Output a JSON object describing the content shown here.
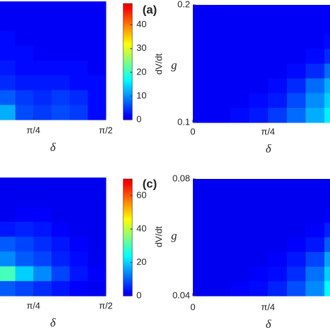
{
  "chart_data": [
    {
      "type": "heatmap",
      "panel_label": "(a)",
      "xlabel": "δ",
      "colorbar_label": "dV/dt",
      "xlim": [
        0,
        1.5708
      ],
      "xticks": [
        {
          "value": 0.7854,
          "label": "π/4"
        },
        {
          "value": 1.5708,
          "label": "π/2"
        }
      ],
      "zlim": [
        0,
        49
      ],
      "zticks": [
        0,
        10,
        20,
        30,
        40
      ],
      "z": [
        [
          1,
          1,
          1,
          1,
          1,
          1,
          1,
          1
        ],
        [
          1,
          1,
          1,
          1,
          1,
          1,
          1,
          1
        ],
        [
          1,
          1,
          2,
          1,
          1,
          1,
          1,
          1
        ],
        [
          2,
          2,
          2,
          2,
          1,
          1,
          1,
          1
        ],
        [
          2,
          3,
          3,
          2,
          2,
          2,
          2,
          1
        ],
        [
          3,
          4,
          4,
          3,
          3,
          3,
          2,
          2
        ],
        [
          8,
          9,
          7,
          5,
          4,
          5,
          4,
          2
        ],
        [
          14,
          18,
          12,
          6,
          5,
          6,
          5,
          2
        ]
      ]
    },
    {
      "type": "heatmap",
      "xlabel": "δ",
      "ylabel": "g",
      "xlim": [
        0,
        1.5708
      ],
      "xticks": [
        0,
        {
          "value": 0.7854,
          "label": "π/4"
        }
      ],
      "ylim": [
        0.1,
        0.2
      ],
      "yticks": [
        0.1,
        0.2
      ],
      "zlim": [
        0,
        49
      ],
      "z": [
        [
          1,
          1,
          1,
          1,
          1,
          1,
          1,
          1
        ],
        [
          1,
          1,
          1,
          1,
          1,
          1,
          1,
          1
        ],
        [
          1,
          1,
          1,
          1,
          1,
          1,
          1,
          2
        ],
        [
          1,
          1,
          1,
          1,
          1,
          1,
          2,
          4
        ],
        [
          1,
          1,
          1,
          1,
          1,
          2,
          4,
          8
        ],
        [
          1,
          1,
          1,
          1,
          2,
          4,
          8,
          12
        ],
        [
          1,
          1,
          1,
          2,
          3,
          6,
          10,
          14
        ],
        [
          1,
          1,
          2,
          3,
          5,
          8,
          12,
          16
        ]
      ]
    },
    {
      "type": "heatmap",
      "panel_label": "(c)",
      "xlabel": "δ",
      "colorbar_label": "dV/dt",
      "xlim": [
        0,
        1.5708
      ],
      "xticks": [
        {
          "value": 0.7854,
          "label": "π/4"
        },
        {
          "value": 1.5708,
          "label": "π/2"
        }
      ],
      "zlim": [
        0,
        70
      ],
      "zticks": [
        0,
        20,
        40,
        60
      ],
      "z": [
        [
          1,
          1,
          1,
          1,
          1,
          1,
          1,
          1
        ],
        [
          1,
          1,
          1,
          1,
          1,
          1,
          1,
          1
        ],
        [
          2,
          2,
          1,
          2,
          2,
          1,
          1,
          1
        ],
        [
          3,
          3,
          4,
          5,
          4,
          2,
          1,
          1
        ],
        [
          6,
          8,
          10,
          8,
          6,
          4,
          2,
          1
        ],
        [
          12,
          16,
          14,
          10,
          8,
          5,
          3,
          1
        ],
        [
          30,
          38,
          30,
          20,
          14,
          8,
          4,
          2
        ],
        [
          10,
          12,
          10,
          8,
          6,
          4,
          2,
          1
        ]
      ]
    },
    {
      "type": "heatmap",
      "xlabel": "δ",
      "ylabel": "g",
      "xlim": [
        0,
        1.5708
      ],
      "xticks": [
        0,
        {
          "value": 0.7854,
          "label": "π/4"
        }
      ],
      "ylim": [
        0.04,
        0.08
      ],
      "yticks": [
        0.04,
        0.08
      ],
      "zlim": [
        0,
        70
      ],
      "z": [
        [
          1,
          1,
          1,
          1,
          1,
          1,
          1,
          1
        ],
        [
          1,
          1,
          1,
          1,
          1,
          1,
          1,
          1
        ],
        [
          1,
          1,
          1,
          1,
          1,
          1,
          1,
          2
        ],
        [
          1,
          1,
          1,
          1,
          1,
          1,
          2,
          5
        ],
        [
          1,
          1,
          1,
          1,
          1,
          2,
          4,
          10
        ],
        [
          1,
          1,
          1,
          1,
          2,
          4,
          8,
          16
        ],
        [
          1,
          1,
          1,
          2,
          3,
          6,
          12,
          20
        ],
        [
          1,
          1,
          2,
          3,
          5,
          9,
          14,
          24
        ]
      ]
    }
  ]
}
